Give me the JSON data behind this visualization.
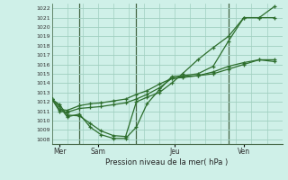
{
  "title": "Pression niveau de la mer( hPa )",
  "background_color": "#cff0e8",
  "grid_color": "#a0cfc0",
  "line_color": "#2d6e2d",
  "vline_color": "#446644",
  "ylim": [
    1007.5,
    1022.5
  ],
  "yticks": [
    1008,
    1009,
    1010,
    1011,
    1012,
    1013,
    1014,
    1015,
    1016,
    1017,
    1018,
    1019,
    1020,
    1021,
    1022
  ],
  "day_labels": [
    "Mer",
    "Sam",
    "Jeu",
    "Ven"
  ],
  "day_positions": [
    0.5,
    3.0,
    8.0,
    12.5
  ],
  "vline_positions": [
    1.8,
    5.5,
    11.5
  ],
  "xlim": [
    0,
    15
  ],
  "lines": [
    {
      "x": [
        0.0,
        0.5,
        1.0,
        1.8,
        2.5,
        3.2,
        4.0,
        4.8,
        5.5,
        6.2,
        7.0,
        7.8,
        8.5,
        9.5,
        10.5,
        11.5,
        12.5,
        13.5,
        14.5
      ],
      "y": [
        1012.3,
        1011.7,
        1010.6,
        1010.5,
        1009.7,
        1008.9,
        1008.4,
        1008.3,
        1012.0,
        1012.5,
        1013.0,
        1014.0,
        1015.0,
        1016.5,
        1017.8,
        1019.0,
        1021.0,
        1021.0,
        1022.2
      ]
    },
    {
      "x": [
        0.0,
        0.5,
        1.0,
        1.8,
        2.5,
        3.2,
        4.0,
        4.8,
        5.5,
        6.2,
        7.0,
        7.8,
        8.5,
        9.5,
        10.5,
        11.5,
        12.5,
        13.5,
        14.5
      ],
      "y": [
        1012.3,
        1011.5,
        1010.4,
        1010.7,
        1009.3,
        1008.5,
        1008.1,
        1008.1,
        1009.3,
        1011.8,
        1013.3,
        1014.7,
        1014.8,
        1015.0,
        1015.8,
        1018.5,
        1021.0,
        1021.0,
        1021.0
      ]
    },
    {
      "x": [
        0.0,
        0.5,
        1.0,
        1.8,
        2.5,
        3.2,
        4.0,
        4.8,
        5.5,
        6.2,
        7.0,
        7.8,
        8.5,
        9.5,
        10.5,
        11.5,
        12.5,
        13.5,
        14.5
      ],
      "y": [
        1012.3,
        1011.0,
        1010.9,
        1011.3,
        1011.4,
        1011.5,
        1011.7,
        1011.9,
        1012.3,
        1012.8,
        1013.5,
        1014.5,
        1014.7,
        1014.8,
        1015.2,
        1015.8,
        1016.2,
        1016.5,
        1016.3
      ]
    },
    {
      "x": [
        0.0,
        0.5,
        1.0,
        1.8,
        2.5,
        3.2,
        4.0,
        4.8,
        5.5,
        6.2,
        7.0,
        7.8,
        8.5,
        9.5,
        10.5,
        11.5,
        12.5,
        13.5,
        14.5
      ],
      "y": [
        1012.3,
        1011.2,
        1011.1,
        1011.6,
        1011.8,
        1011.9,
        1012.1,
        1012.3,
        1012.8,
        1013.2,
        1013.9,
        1014.5,
        1014.6,
        1014.8,
        1015.0,
        1015.5,
        1016.0,
        1016.5,
        1016.5
      ]
    }
  ]
}
